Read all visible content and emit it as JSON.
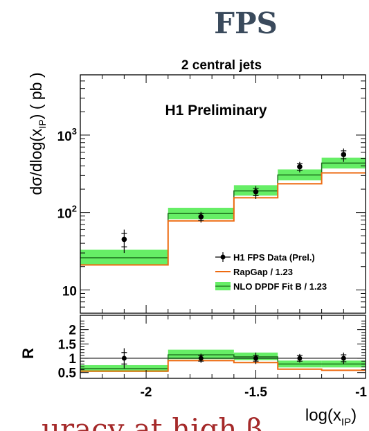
{
  "page": {
    "heading": "FPS",
    "caption": "uracy at high β"
  },
  "colors": {
    "band": "#66ee66",
    "nlo": "#1a6b1a",
    "rapgap": "#ee6a10",
    "data": "#000000"
  },
  "chart_data": [
    {
      "type": "histogram",
      "panel": "top",
      "title": "2 central jets",
      "annotation": "H1 Preliminary",
      "xlabel": "log(x_IP)",
      "ylabel": "dσ/dlog(x_IP) ( pb )",
      "y_scale": "log",
      "xlim": [
        -2.3,
        -1.0
      ],
      "ylim": [
        5,
        6000
      ],
      "y_tick_labels": [
        "10",
        "10^2",
        "10^3"
      ],
      "legend": {
        "placement": "lower-right",
        "entries": [
          "H1 FPS Data (Prel.)",
          "RapGap / 1.23",
          "NLO DPDF Fit B / 1.23"
        ]
      },
      "bins": [
        [
          -2.3,
          -1.9
        ],
        [
          -1.9,
          -1.6
        ],
        [
          -1.6,
          -1.4
        ],
        [
          -1.4,
          -1.2
        ],
        [
          -1.2,
          -1.0
        ]
      ],
      "series": [
        {
          "name": "H1 FPS Data (Prel.)",
          "kind": "points",
          "x": [
            -2.1,
            -1.75,
            -1.5,
            -1.3,
            -1.1
          ],
          "y": [
            45,
            88,
            185,
            390,
            560
          ],
          "err_stat": [
            9,
            9,
            20,
            38,
            65
          ],
          "err_tot": [
            15,
            14,
            35,
            60,
            110
          ]
        },
        {
          "name": "RapGap / 1.23",
          "kind": "step",
          "y": [
            21,
            78,
            155,
            235,
            325
          ]
        },
        {
          "name": "NLO DPDF Fit B / 1.23",
          "kind": "band",
          "y": [
            26,
            97,
            190,
            305,
            435
          ],
          "y_lo": [
            21,
            82,
            165,
            260,
            370
          ],
          "y_hi": [
            33,
            115,
            225,
            360,
            510
          ]
        }
      ]
    },
    {
      "type": "histogram",
      "panel": "ratio",
      "ylabel": "R",
      "xlabel": "log(x_IP)",
      "xlim": [
        -2.3,
        -1.0
      ],
      "ylim": [
        0.3,
        2.5
      ],
      "x_ticks": [
        -2,
        -1.5,
        -1
      ],
      "x_tick_labels": [
        "-2",
        "-1.5",
        "-1"
      ],
      "y_ticks": [
        0.5,
        1,
        1.5,
        2
      ],
      "y_tick_labels": [
        "0.5",
        "1",
        "1.5",
        "2"
      ],
      "reference": 1,
      "series": [
        {
          "name": "H1 FPS Data (Prel.)",
          "kind": "points",
          "x": [
            -2.1,
            -1.75,
            -1.5,
            -1.3,
            -1.1
          ],
          "y": [
            1.0,
            1.0,
            1.0,
            1.0,
            1.0
          ],
          "err_stat": [
            0.2,
            0.1,
            0.1,
            0.1,
            0.12
          ],
          "err_tot": [
            0.35,
            0.16,
            0.2,
            0.15,
            0.2
          ]
        },
        {
          "name": "RapGap / 1.23",
          "kind": "step",
          "y": [
            0.55,
            0.92,
            0.85,
            0.62,
            0.58
          ]
        },
        {
          "name": "NLO DPDF Fit B / 1.23",
          "kind": "band",
          "y": [
            0.64,
            1.12,
            1.05,
            0.8,
            0.8
          ],
          "y_lo": [
            0.52,
            0.97,
            0.93,
            0.68,
            0.68
          ],
          "y_hi": [
            0.76,
            1.3,
            1.2,
            0.92,
            0.92
          ]
        }
      ]
    }
  ]
}
